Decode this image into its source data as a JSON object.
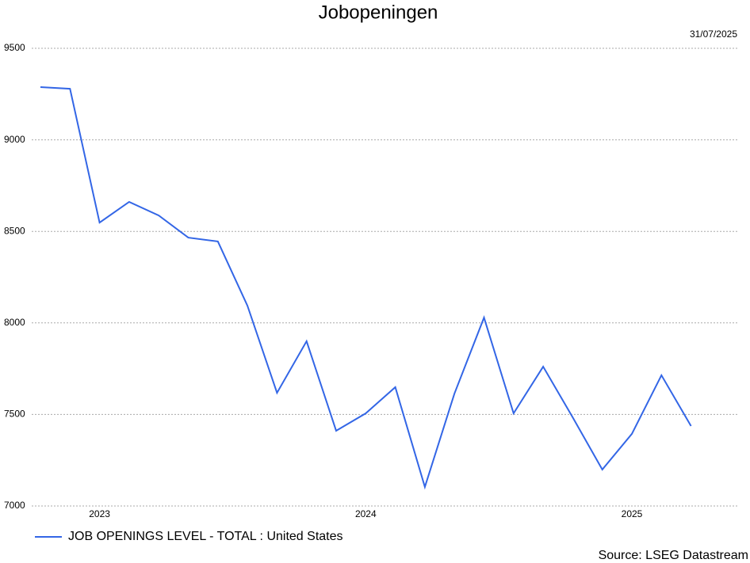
{
  "chart_data": {
    "type": "line",
    "title": "Jobopeningen",
    "date": "31/07/2025",
    "source": "Source: LSEG Datastream",
    "categories": [
      null,
      null,
      "2023",
      null,
      null,
      null,
      null,
      null,
      null,
      null,
      null,
      "2024",
      null,
      null,
      null,
      null,
      null,
      null,
      null,
      null,
      "2025",
      null,
      null
    ],
    "series": [
      {
        "name": "JOB OPENINGS LEVEL - TOTAL : United States",
        "color": "#3366e6",
        "values": [
          9288,
          9279,
          8548,
          8661,
          8587,
          8466,
          8445,
          8094,
          7618,
          7900,
          7411,
          7506,
          7649,
          7104,
          7614,
          8029,
          7506,
          7761,
          7484,
          7199,
          7394,
          7714,
          7437
        ]
      }
    ],
    "ylim": [
      7000,
      9500
    ],
    "yticks": [
      7000,
      7500,
      8000,
      8500,
      9000,
      9500
    ],
    "grid": true
  }
}
